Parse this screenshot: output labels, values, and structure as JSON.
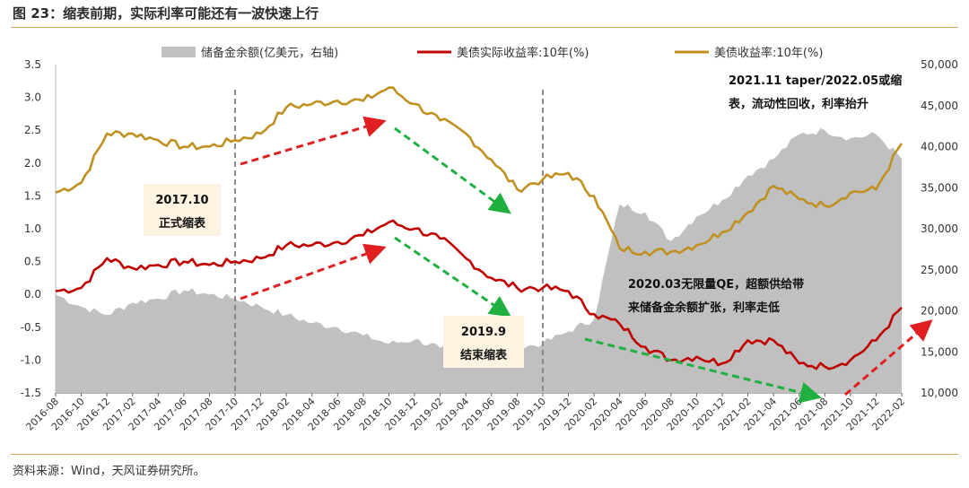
{
  "title": "图 23：缩表前期，实际利率可能还有一波快速上行",
  "source": "资料来源：Wind，天风证券研究所。",
  "colors": {
    "reserve": "#c0c0c0",
    "real_yield": "#c00000",
    "nominal_yield": "#c09020",
    "green_arrow": "#20b040",
    "red_arrow": "#e02020",
    "note_bg": "#fdf3e1"
  },
  "chart_data": {
    "type": "line",
    "x_ticks": [
      "2016-08",
      "2016-10",
      "2016-12",
      "2017-02",
      "2017-04",
      "2017-06",
      "2017-08",
      "2017-10",
      "2017-12",
      "2018-02",
      "2018-04",
      "2018-06",
      "2018-08",
      "2018-10",
      "2018-12",
      "2019-02",
      "2019-04",
      "2019-06",
      "2019-08",
      "2019-10",
      "2019-12",
      "2020-02",
      "2020-04",
      "2020-06",
      "2020-08",
      "2020-10",
      "2020-12",
      "2021-02",
      "2021-04",
      "2021-06",
      "2021-08",
      "2021-10",
      "2021-12",
      "2022-02"
    ],
    "y_left": {
      "min": -1.5,
      "max": 3.5,
      "ticks": [
        "3.5",
        "3.0",
        "2.5",
        "2.0",
        "1.5",
        "1.0",
        "0.5",
        "0.0",
        "-0.5",
        "-1.0",
        "-1.5"
      ]
    },
    "y_right": {
      "min": 10000,
      "max": 50000,
      "ticks": [
        "50,000",
        "45,000",
        "40,000",
        "35,000",
        "30,000",
        "25,000",
        "20,000",
        "15,000",
        "10,000"
      ]
    },
    "series": [
      {
        "name": "储备金余额(亿美元，右轴)",
        "type": "area",
        "axis": "right",
        "points": [
          [
            0,
            22000
          ],
          [
            1,
            20500
          ],
          [
            2,
            19500
          ],
          [
            3,
            21000
          ],
          [
            4,
            21500
          ],
          [
            5,
            22500
          ],
          [
            6,
            22000
          ],
          [
            7,
            21500
          ],
          [
            8,
            20500
          ],
          [
            9,
            19500
          ],
          [
            10,
            18500
          ],
          [
            11,
            18000
          ],
          [
            12,
            17000
          ],
          [
            13,
            16000
          ],
          [
            14,
            16500
          ],
          [
            15,
            15500
          ],
          [
            16,
            15000
          ],
          [
            17,
            14500
          ],
          [
            18,
            15500
          ],
          [
            19,
            16000
          ],
          [
            20,
            17500
          ],
          [
            21,
            19000
          ],
          [
            22,
            33000
          ],
          [
            23,
            32000
          ],
          [
            24,
            28500
          ],
          [
            25,
            31500
          ],
          [
            26,
            33500
          ],
          [
            27,
            36500
          ],
          [
            28,
            38500
          ],
          [
            29,
            41500
          ],
          [
            30,
            42000
          ],
          [
            31,
            41000
          ],
          [
            32,
            41500
          ],
          [
            33,
            38500
          ]
        ]
      },
      {
        "name": "美债实际收益率:10年(%)",
        "type": "line",
        "axis": "left",
        "points": [
          [
            0,
            0.05
          ],
          [
            1,
            0.1
          ],
          [
            2,
            0.55
          ],
          [
            3,
            0.4
          ],
          [
            4,
            0.45
          ],
          [
            5,
            0.5
          ],
          [
            6,
            0.45
          ],
          [
            7,
            0.5
          ],
          [
            8,
            0.55
          ],
          [
            9,
            0.75
          ],
          [
            10,
            0.75
          ],
          [
            11,
            0.8
          ],
          [
            12,
            0.9
          ],
          [
            13,
            1.1
          ],
          [
            14,
            1.0
          ],
          [
            15,
            0.85
          ],
          [
            16,
            0.55
          ],
          [
            17,
            0.25
          ],
          [
            18,
            0.1
          ],
          [
            19,
            0.1
          ],
          [
            20,
            0.05
          ],
          [
            21,
            -0.3
          ],
          [
            22,
            -0.45
          ],
          [
            23,
            -0.8
          ],
          [
            24,
            -1.0
          ],
          [
            25,
            -0.95
          ],
          [
            26,
            -1.05
          ],
          [
            27,
            -0.7
          ],
          [
            28,
            -0.7
          ],
          [
            29,
            -1.05
          ],
          [
            30,
            -1.1
          ],
          [
            31,
            -1.0
          ],
          [
            32,
            -0.7
          ],
          [
            33,
            -0.2
          ]
        ]
      },
      {
        "name": "美债收益率:10年(%)",
        "type": "line",
        "axis": "left",
        "points": [
          [
            0,
            1.55
          ],
          [
            1,
            1.7
          ],
          [
            2,
            2.45
          ],
          [
            3,
            2.45
          ],
          [
            4,
            2.35
          ],
          [
            5,
            2.25
          ],
          [
            6,
            2.25
          ],
          [
            7,
            2.35
          ],
          [
            8,
            2.45
          ],
          [
            9,
            2.85
          ],
          [
            10,
            2.9
          ],
          [
            11,
            2.95
          ],
          [
            12,
            2.95
          ],
          [
            13,
            3.15
          ],
          [
            14,
            2.9
          ],
          [
            15,
            2.65
          ],
          [
            16,
            2.45
          ],
          [
            17,
            2.05
          ],
          [
            18,
            1.6
          ],
          [
            19,
            1.75
          ],
          [
            20,
            1.85
          ],
          [
            21,
            1.5
          ],
          [
            22,
            0.7
          ],
          [
            23,
            0.65
          ],
          [
            24,
            0.65
          ],
          [
            25,
            0.75
          ],
          [
            26,
            0.95
          ],
          [
            27,
            1.25
          ],
          [
            28,
            1.65
          ],
          [
            29,
            1.45
          ],
          [
            30,
            1.35
          ],
          [
            31,
            1.55
          ],
          [
            32,
            1.6
          ],
          [
            33,
            2.3
          ]
        ]
      }
    ],
    "annotations": [
      {
        "text": "2017.10\n正式缩表"
      },
      {
        "text": "2019.9\n结束缩表"
      },
      {
        "text": "2021.11 taper/2022.05或缩\n表，流动性回收，利率抬升"
      },
      {
        "text": "2020.03无限量QE，超额供给带\n来储备金余额扩张，利率走低"
      }
    ]
  }
}
